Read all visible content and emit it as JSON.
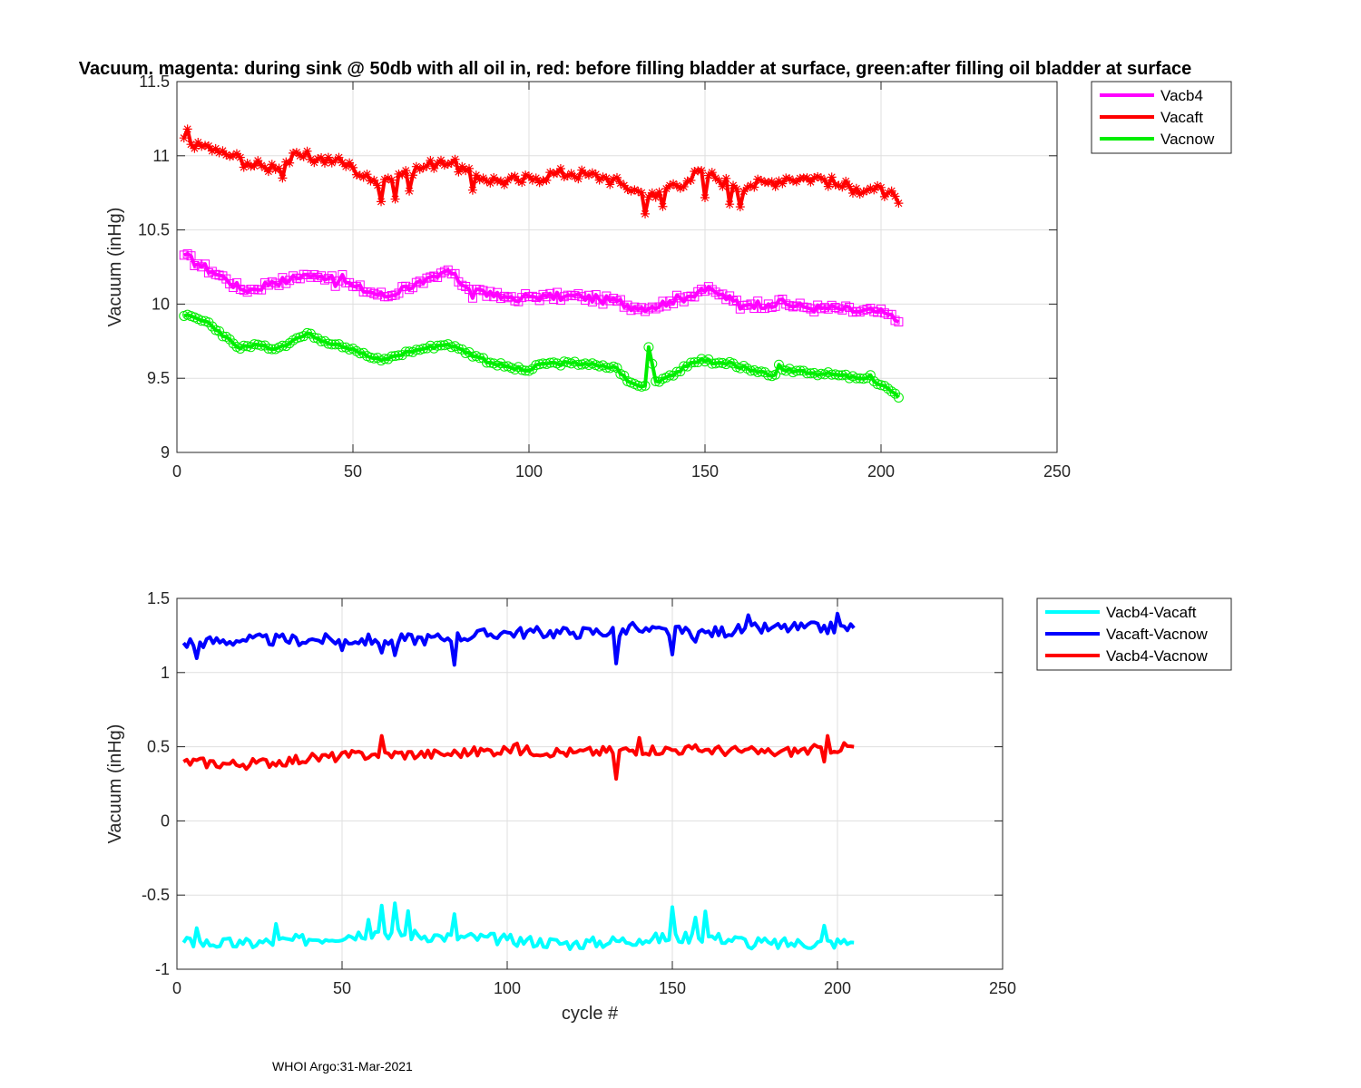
{
  "footer": "WHOI Argo:31-Mar-2021",
  "chart_data": [
    {
      "type": "line",
      "title": "Vacuum. magenta: during sink @ 50db with all oil in, red: before filling bladder at surface, green:after filling oil bladder at surface",
      "xlabel": "",
      "ylabel": "Vacuum (inHg)",
      "xlim": [
        0,
        250
      ],
      "ylim": [
        9,
        11.5
      ],
      "xticks": [
        0,
        50,
        100,
        150,
        200,
        250
      ],
      "yticks": [
        9,
        9.5,
        10,
        10.5,
        11,
        11.5
      ],
      "grid": true,
      "legend_position": "outside-top-right",
      "x_range": [
        2,
        205
      ],
      "series": [
        {
          "name": "Vacb4",
          "color": "#ff00ff",
          "marker": "square",
          "anchors": [
            [
              2,
              10.33
            ],
            [
              6,
              10.27
            ],
            [
              10,
              10.22
            ],
            [
              14,
              10.17
            ],
            [
              18,
              10.1
            ],
            [
              22,
              10.1
            ],
            [
              27,
              10.15
            ],
            [
              32,
              10.16
            ],
            [
              36,
              10.2
            ],
            [
              40,
              10.18
            ],
            [
              45,
              10.2
            ],
            [
              50,
              10.12
            ],
            [
              55,
              10.08
            ],
            [
              60,
              10.05
            ],
            [
              65,
              10.12
            ],
            [
              70,
              10.14
            ],
            [
              74,
              10.18
            ],
            [
              77,
              10.23
            ],
            [
              80,
              10.15
            ],
            [
              85,
              10.1
            ],
            [
              90,
              10.05
            ],
            [
              95,
              10.05
            ],
            [
              100,
              10.05
            ],
            [
              105,
              10.05
            ],
            [
              110,
              10.05
            ],
            [
              115,
              10.05
            ],
            [
              120,
              10.03
            ],
            [
              125,
              10.02
            ],
            [
              130,
              9.98
            ],
            [
              135,
              9.98
            ],
            [
              140,
              10.02
            ],
            [
              145,
              10.05
            ],
            [
              149,
              10.1
            ],
            [
              153,
              10.08
            ],
            [
              158,
              10.02
            ],
            [
              163,
              10.0
            ],
            [
              168,
              10.0
            ],
            [
              173,
              10.0
            ],
            [
              178,
              9.98
            ],
            [
              183,
              9.97
            ],
            [
              188,
              9.97
            ],
            [
              193,
              9.95
            ],
            [
              198,
              9.95
            ],
            [
              202,
              9.93
            ],
            [
              205,
              9.88
            ]
          ],
          "noise": 0.03,
          "spikes": [
            [
              45,
              -0.08
            ],
            [
              84,
              -0.06
            ],
            [
              97,
              -0.06
            ],
            [
              160,
              -0.05
            ],
            [
              172,
              0.03
            ]
          ]
        },
        {
          "name": "Vacaft",
          "color": "#ff0000",
          "marker": "asterisk",
          "anchors": [
            [
              2,
              11.12
            ],
            [
              3,
              11.18
            ],
            [
              5,
              11.05
            ],
            [
              8,
              11.07
            ],
            [
              12,
              11.02
            ],
            [
              16,
              11.0
            ],
            [
              20,
              10.95
            ],
            [
              25,
              10.92
            ],
            [
              30,
              10.95
            ],
            [
              35,
              11.0
            ],
            [
              40,
              10.98
            ],
            [
              45,
              10.97
            ],
            [
              50,
              10.92
            ],
            [
              55,
              10.83
            ],
            [
              60,
              10.85
            ],
            [
              65,
              10.9
            ],
            [
              70,
              10.92
            ],
            [
              75,
              10.97
            ],
            [
              78,
              10.95
            ],
            [
              82,
              10.9
            ],
            [
              87,
              10.85
            ],
            [
              92,
              10.83
            ],
            [
              97,
              10.83
            ],
            [
              102,
              10.85
            ],
            [
              107,
              10.88
            ],
            [
              112,
              10.88
            ],
            [
              117,
              10.87
            ],
            [
              122,
              10.85
            ],
            [
              127,
              10.8
            ],
            [
              132,
              10.75
            ],
            [
              136,
              10.72
            ],
            [
              140,
              10.8
            ],
            [
              145,
              10.83
            ],
            [
              149,
              10.9
            ],
            [
              153,
              10.85
            ],
            [
              158,
              10.8
            ],
            [
              163,
              10.8
            ],
            [
              168,
              10.82
            ],
            [
              173,
              10.85
            ],
            [
              178,
              10.85
            ],
            [
              183,
              10.85
            ],
            [
              188,
              10.8
            ],
            [
              193,
              10.78
            ],
            [
              198,
              10.77
            ],
            [
              202,
              10.75
            ],
            [
              205,
              10.68
            ]
          ],
          "noise": 0.04,
          "spikes": [
            [
              30,
              -0.1
            ],
            [
              58,
              -0.12
            ],
            [
              62,
              -0.15
            ],
            [
              66,
              -0.18
            ],
            [
              84,
              -0.15
            ],
            [
              133,
              -0.1
            ],
            [
              138,
              -0.1
            ],
            [
              150,
              -0.2
            ],
            [
              157,
              -0.12
            ],
            [
              160,
              -0.12
            ]
          ]
        },
        {
          "name": "Vacnow",
          "color": "#00ee00",
          "marker": "circle",
          "anchors": [
            [
              2,
              9.92
            ],
            [
              6,
              9.9
            ],
            [
              10,
              9.85
            ],
            [
              14,
              9.78
            ],
            [
              18,
              9.7
            ],
            [
              22,
              9.73
            ],
            [
              26,
              9.7
            ],
            [
              30,
              9.72
            ],
            [
              34,
              9.77
            ],
            [
              38,
              9.8
            ],
            [
              42,
              9.75
            ],
            [
              46,
              9.73
            ],
            [
              50,
              9.7
            ],
            [
              54,
              9.65
            ],
            [
              58,
              9.62
            ],
            [
              62,
              9.65
            ],
            [
              66,
              9.68
            ],
            [
              70,
              9.7
            ],
            [
              74,
              9.72
            ],
            [
              77,
              9.73
            ],
            [
              80,
              9.7
            ],
            [
              85,
              9.65
            ],
            [
              90,
              9.6
            ],
            [
              95,
              9.57
            ],
            [
              100,
              9.55
            ],
            [
              104,
              9.6
            ],
            [
              108,
              9.6
            ],
            [
              112,
              9.6
            ],
            [
              116,
              9.6
            ],
            [
              120,
              9.58
            ],
            [
              125,
              9.57
            ],
            [
              128,
              9.48
            ],
            [
              131,
              9.45
            ],
            [
              133,
              9.45
            ],
            [
              134,
              9.71
            ],
            [
              136,
              9.48
            ],
            [
              140,
              9.52
            ],
            [
              145,
              9.58
            ],
            [
              149,
              9.63
            ],
            [
              153,
              9.6
            ],
            [
              158,
              9.6
            ],
            [
              163,
              9.55
            ],
            [
              168,
              9.52
            ],
            [
              173,
              9.55
            ],
            [
              178,
              9.55
            ],
            [
              183,
              9.53
            ],
            [
              188,
              9.52
            ],
            [
              193,
              9.5
            ],
            [
              198,
              9.48
            ],
            [
              202,
              9.43
            ],
            [
              205,
              9.37
            ]
          ],
          "noise": 0.015,
          "spikes": [
            [
              171,
              0.04
            ],
            [
              197,
              0.05
            ]
          ]
        }
      ]
    },
    {
      "type": "line",
      "title": "",
      "xlabel": "cycle #",
      "ylabel": "Vacuum (inHg)",
      "xlim": [
        0,
        250
      ],
      "ylim": [
        -1,
        1.5
      ],
      "xticks": [
        0,
        50,
        100,
        150,
        200,
        250
      ],
      "yticks": [
        -1,
        -0.5,
        0,
        0.5,
        1,
        1.5
      ],
      "grid": true,
      "legend_position": "outside-top-right",
      "x_range": [
        2,
        205
      ],
      "series": [
        {
          "name": "Vacb4-Vacaft",
          "color": "#00ffff",
          "anchors": [
            [
              2,
              -0.82
            ],
            [
              20,
              -0.83
            ],
            [
              40,
              -0.8
            ],
            [
              60,
              -0.75
            ],
            [
              80,
              -0.78
            ],
            [
              100,
              -0.8
            ],
            [
              120,
              -0.83
            ],
            [
              140,
              -0.8
            ],
            [
              160,
              -0.78
            ],
            [
              180,
              -0.83
            ],
            [
              205,
              -0.82
            ]
          ],
          "noise": 0.04,
          "spikes": [
            [
              6,
              0.13
            ],
            [
              30,
              0.1
            ],
            [
              58,
              0.12
            ],
            [
              62,
              0.2
            ],
            [
              66,
              0.18
            ],
            [
              70,
              0.15
            ],
            [
              84,
              0.13
            ],
            [
              150,
              0.2
            ],
            [
              157,
              0.17
            ],
            [
              160,
              0.17
            ],
            [
              174,
              -0.06
            ],
            [
              196,
              0.1
            ]
          ]
        },
        {
          "name": "Vacaft-Vacnow",
          "color": "#0000ff",
          "anchors": [
            [
              2,
              1.2
            ],
            [
              20,
              1.22
            ],
            [
              40,
              1.22
            ],
            [
              60,
              1.22
            ],
            [
              80,
              1.23
            ],
            [
              100,
              1.27
            ],
            [
              120,
              1.27
            ],
            [
              140,
              1.28
            ],
            [
              160,
              1.27
            ],
            [
              180,
              1.3
            ],
            [
              205,
              1.3
            ]
          ],
          "noise": 0.04,
          "spikes": [
            [
              6,
              -0.12
            ],
            [
              50,
              -0.08
            ],
            [
              62,
              -0.12
            ],
            [
              66,
              -0.12
            ],
            [
              84,
              -0.15
            ],
            [
              133,
              -0.22
            ],
            [
              138,
              0.08
            ],
            [
              150,
              -0.15
            ],
            [
              157,
              -0.1
            ],
            [
              173,
              0.06
            ],
            [
              200,
              0.08
            ]
          ]
        },
        {
          "name": "Vacb4-Vacnow",
          "color": "#ff0000",
          "anchors": [
            [
              2,
              0.4
            ],
            [
              20,
              0.38
            ],
            [
              40,
              0.42
            ],
            [
              60,
              0.45
            ],
            [
              80,
              0.45
            ],
            [
              100,
              0.48
            ],
            [
              120,
              0.46
            ],
            [
              140,
              0.48
            ],
            [
              160,
              0.48
            ],
            [
              180,
              0.46
            ],
            [
              205,
              0.5
            ]
          ],
          "noise": 0.035,
          "spikes": [
            [
              62,
              0.1
            ],
            [
              103,
              0.06
            ],
            [
              133,
              -0.2
            ],
            [
              140,
              0.08
            ],
            [
              196,
              -0.12
            ],
            [
              197,
              0.08
            ]
          ]
        }
      ]
    }
  ]
}
